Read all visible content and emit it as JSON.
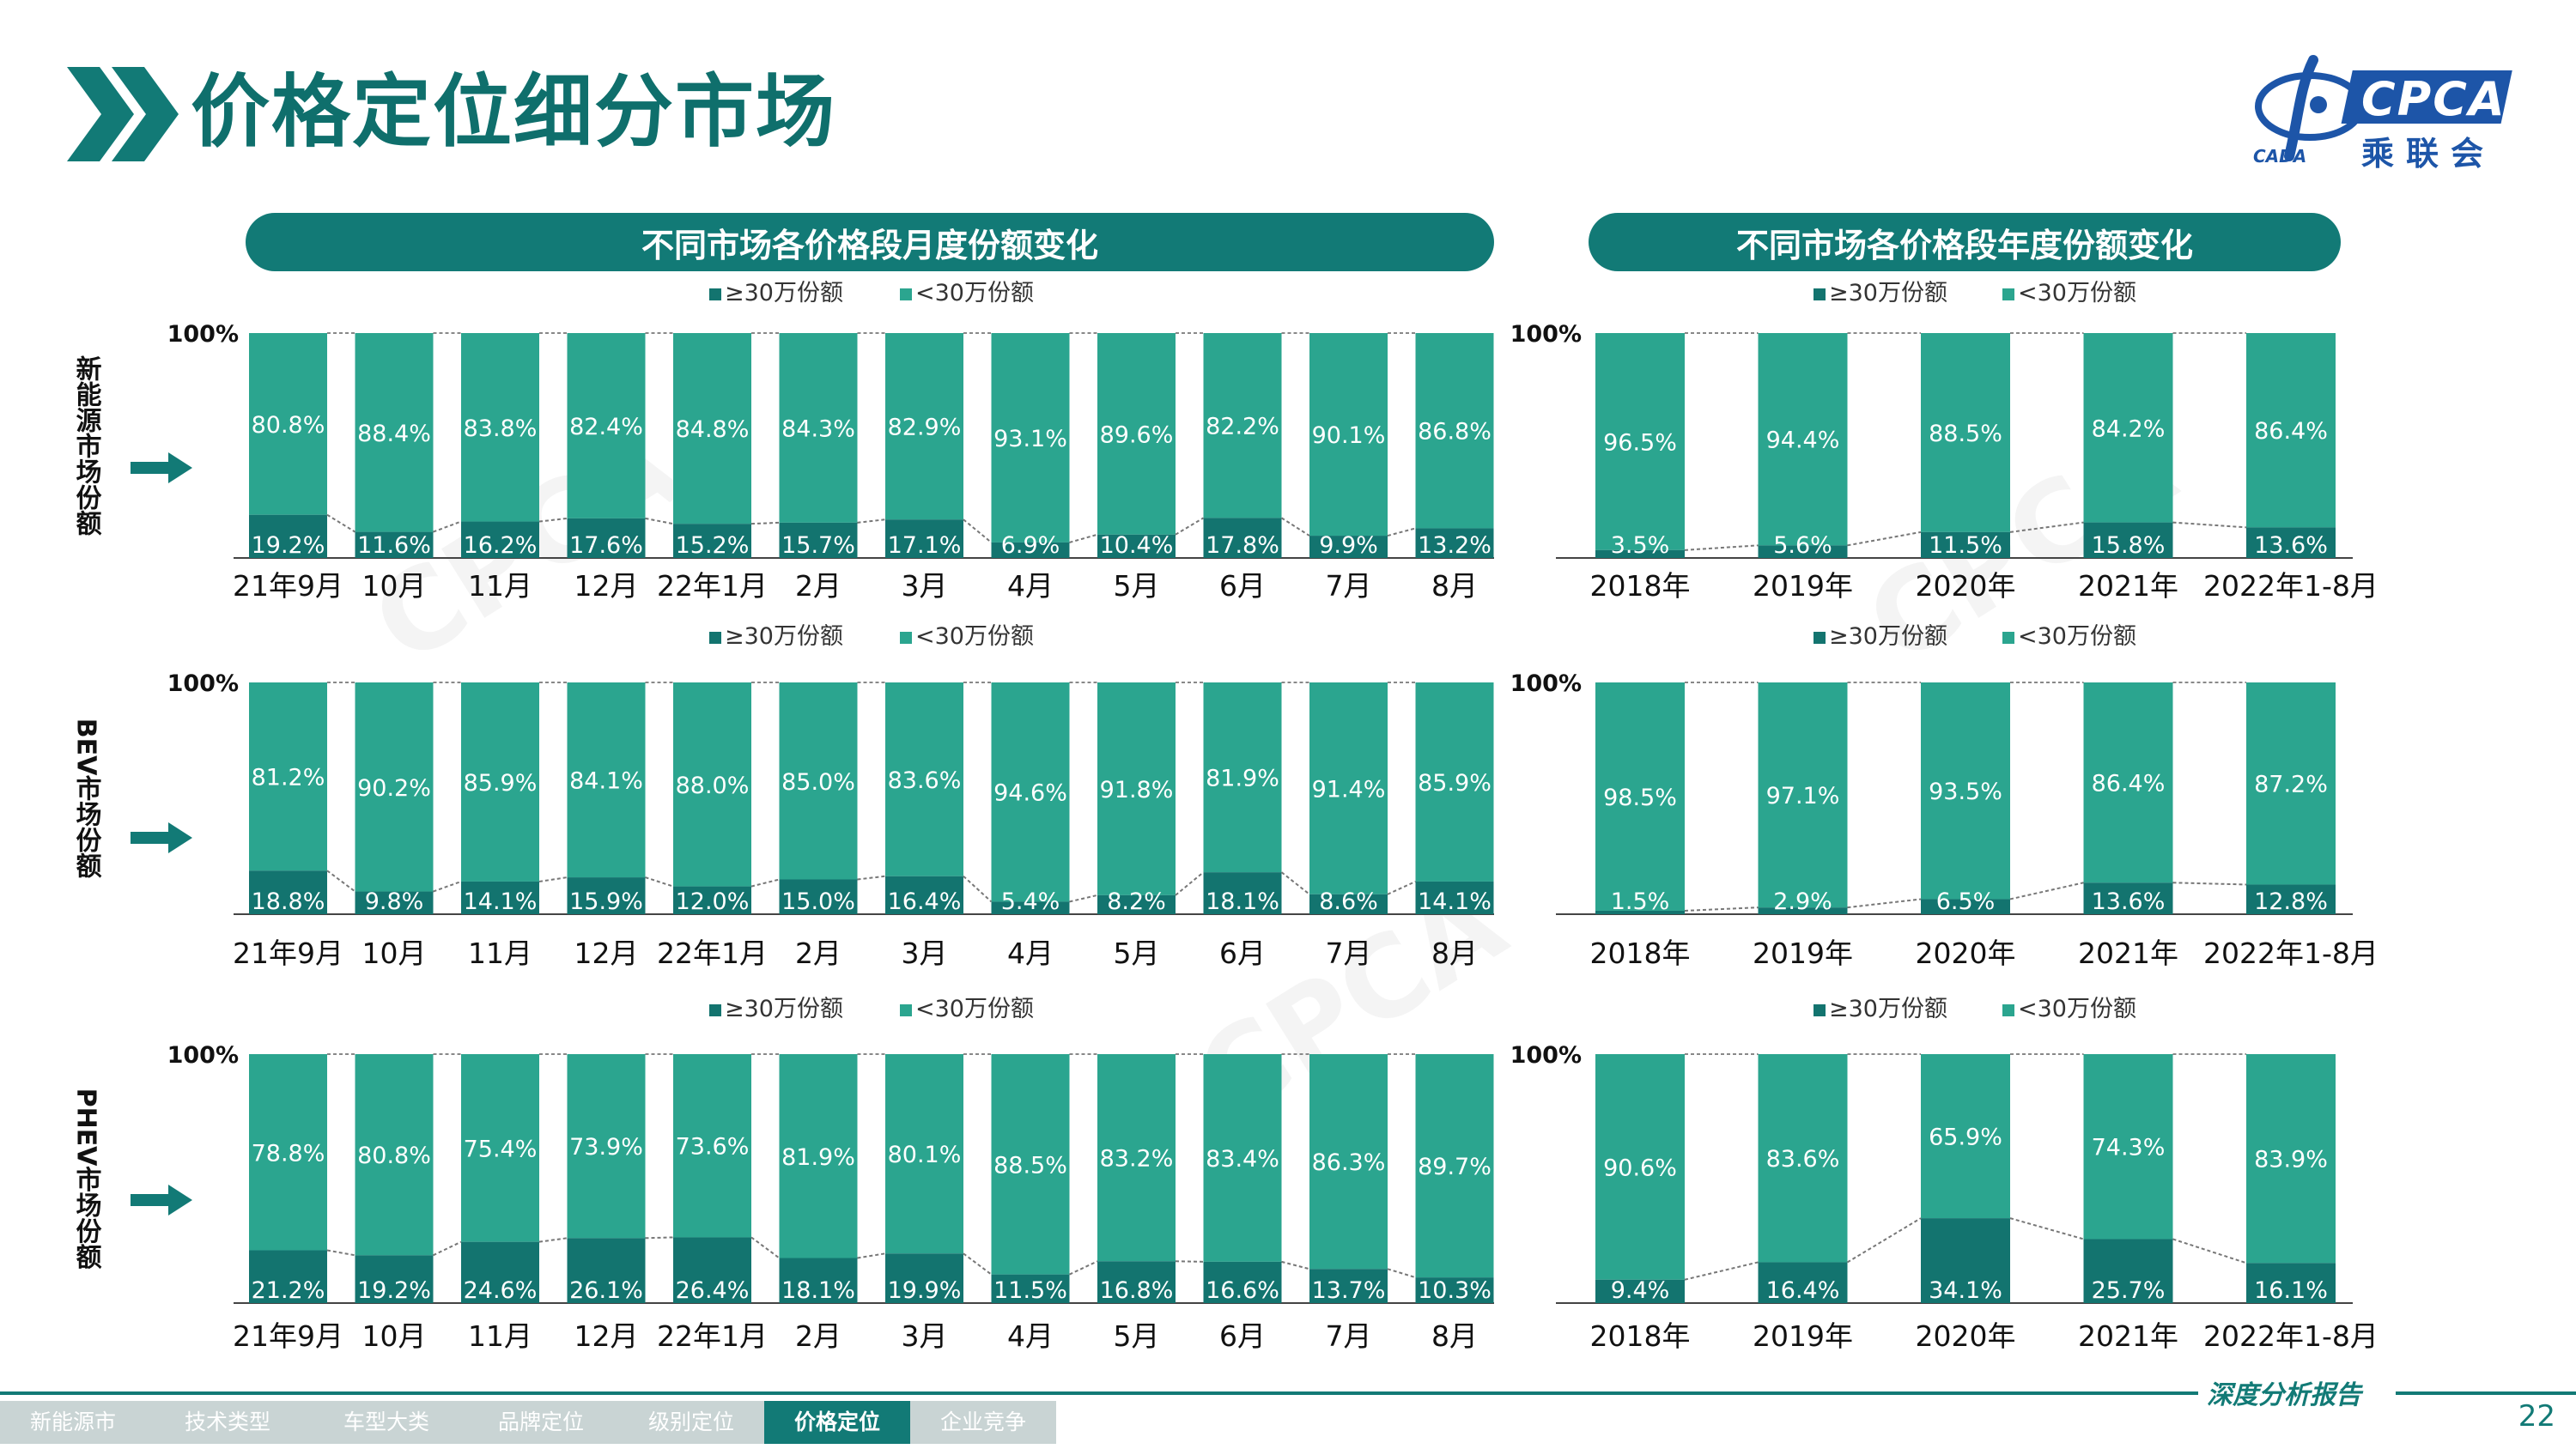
{
  "page": {
    "title": "价格定位细分市场",
    "report_label": "深度分析报告",
    "page_number": "22",
    "brand": {
      "name_latin": "CPCA",
      "name_cn": "乘联会",
      "sub": "CADA"
    },
    "colors": {
      "high": "#13746f",
      "low": "#2ba58f",
      "accent": "#127a76",
      "arrow": "#127a76"
    }
  },
  "nav": {
    "items": [
      "新能源市场",
      "技术类型",
      "车型大类",
      "品牌定位",
      "级别定位",
      "价格定位",
      "企业竞争"
    ],
    "active_index": 5
  },
  "headers": {
    "monthly": "不同市场各价格段月度份额变化",
    "yearly": "不同市场各价格段年度份额变化"
  },
  "row_labels": [
    "新能源市场份额",
    "BEV市场份额",
    "PHEV市场份额"
  ],
  "chart_data": [
    {
      "type": "bar",
      "stacked": true,
      "percent": true,
      "market": "新能源市场份额",
      "categories": [
        "21年9月",
        "10月",
        "11月",
        "12月",
        "22年1月",
        "2月",
        "3月",
        "4月",
        "5月",
        "6月",
        "7月",
        "8月"
      ],
      "series": [
        {
          "name": "≥30万份额",
          "values": [
            19.2,
            11.6,
            16.2,
            17.6,
            15.2,
            15.7,
            17.1,
            6.9,
            10.4,
            17.8,
            9.9,
            13.2
          ]
        },
        {
          "name": "<30万份额",
          "values": [
            80.8,
            88.4,
            83.8,
            82.4,
            84.8,
            84.3,
            82.9,
            93.1,
            89.6,
            82.2,
            90.1,
            86.8
          ]
        }
      ],
      "ytick": "100%",
      "ylim": [
        0,
        100
      ]
    },
    {
      "type": "bar",
      "stacked": true,
      "percent": true,
      "market": "新能源市场份额",
      "categories": [
        "2018年",
        "2019年",
        "2020年",
        "2021年",
        "2022年1-8月"
      ],
      "series": [
        {
          "name": "≥30万份额",
          "values": [
            3.5,
            5.6,
            11.5,
            15.8,
            13.6
          ]
        },
        {
          "name": "<30万份额",
          "values": [
            96.5,
            94.4,
            88.5,
            84.2,
            86.4
          ]
        }
      ],
      "ytick": "100%",
      "ylim": [
        0,
        100
      ]
    },
    {
      "type": "bar",
      "stacked": true,
      "percent": true,
      "market": "BEV市场份额",
      "categories": [
        "21年9月",
        "10月",
        "11月",
        "12月",
        "22年1月",
        "2月",
        "3月",
        "4月",
        "5月",
        "6月",
        "7月",
        "8月"
      ],
      "series": [
        {
          "name": "≥30万份额",
          "values": [
            18.8,
            9.8,
            14.1,
            15.9,
            12.0,
            15.0,
            16.4,
            5.4,
            8.2,
            18.1,
            8.6,
            14.1
          ]
        },
        {
          "name": "<30万份额",
          "values": [
            81.2,
            90.2,
            85.9,
            84.1,
            88.0,
            85.0,
            83.6,
            94.6,
            91.8,
            81.9,
            91.4,
            85.9
          ]
        }
      ],
      "ytick": "100%",
      "ylim": [
        0,
        100
      ]
    },
    {
      "type": "bar",
      "stacked": true,
      "percent": true,
      "market": "BEV市场份额",
      "categories": [
        "2018年",
        "2019年",
        "2020年",
        "2021年",
        "2022年1-8月"
      ],
      "series": [
        {
          "name": "≥30万份额",
          "values": [
            1.5,
            2.9,
            6.5,
            13.6,
            12.8
          ]
        },
        {
          "name": "<30万份额",
          "values": [
            98.5,
            97.1,
            93.5,
            86.4,
            87.2
          ]
        }
      ],
      "ytick": "100%",
      "ylim": [
        0,
        100
      ]
    },
    {
      "type": "bar",
      "stacked": true,
      "percent": true,
      "market": "PHEV市场份额",
      "categories": [
        "21年9月",
        "10月",
        "11月",
        "12月",
        "22年1月",
        "2月",
        "3月",
        "4月",
        "5月",
        "6月",
        "7月",
        "8月"
      ],
      "series": [
        {
          "name": "≥30万份额",
          "values": [
            21.2,
            19.2,
            24.6,
            26.1,
            26.4,
            18.1,
            19.9,
            11.5,
            16.8,
            16.6,
            13.7,
            10.3
          ]
        },
        {
          "name": "<30万份额",
          "values": [
            78.8,
            80.8,
            75.4,
            73.9,
            73.6,
            81.9,
            80.1,
            88.5,
            83.2,
            83.4,
            86.3,
            89.7
          ]
        }
      ],
      "ytick": "100%",
      "ylim": [
        0,
        100
      ]
    },
    {
      "type": "bar",
      "stacked": true,
      "percent": true,
      "market": "PHEV市场份额",
      "categories": [
        "2018年",
        "2019年",
        "2020年",
        "2021年",
        "2022年1-8月"
      ],
      "series": [
        {
          "name": "≥30万份额",
          "values": [
            9.4,
            16.4,
            34.1,
            25.7,
            16.1
          ]
        },
        {
          "name": "<30万份额",
          "values": [
            90.6,
            83.6,
            65.9,
            74.3,
            83.9
          ]
        }
      ],
      "ytick": "100%",
      "ylim": [
        0,
        100
      ]
    }
  ]
}
